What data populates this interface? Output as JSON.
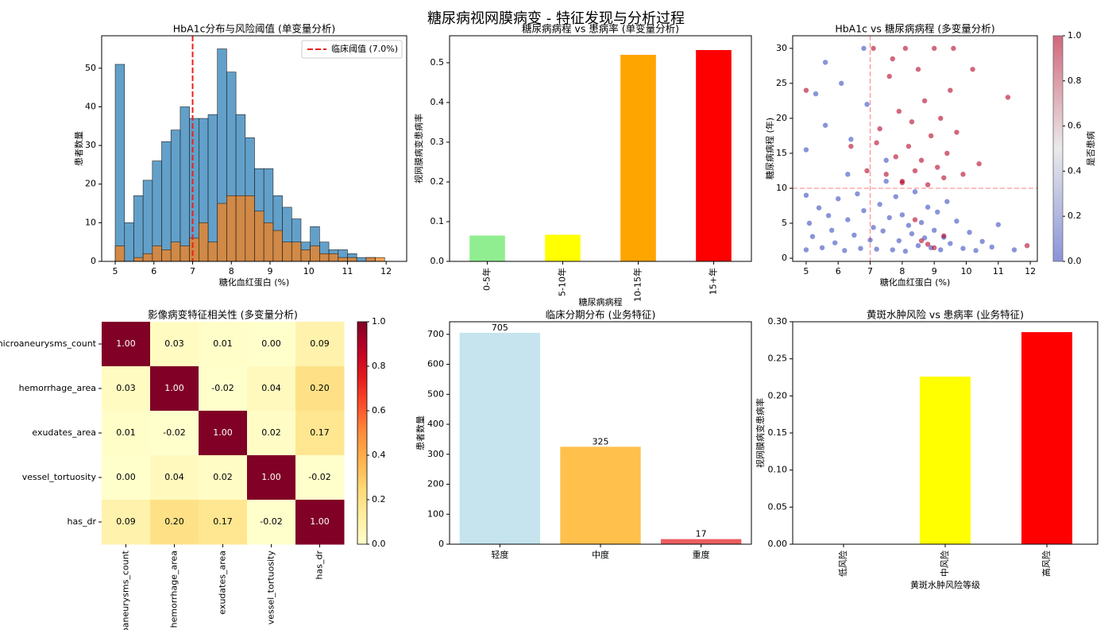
{
  "title": "糖尿病视网膜病变 - 特征发现与分析过程",
  "chart_data": [
    {
      "type": "histogram",
      "title": "HbA1c分布与风险阈值 (单变量分析)",
      "xlabel": "糖化血红蛋白 (%)",
      "ylabel": "患者数量",
      "bins": [
        5.0,
        5.24,
        5.48,
        5.72,
        5.96,
        6.2,
        6.44,
        6.68,
        6.92,
        7.16,
        7.4,
        7.64,
        7.88,
        8.12,
        8.36,
        8.6,
        8.84,
        9.08,
        9.32,
        9.56,
        9.8,
        10.04,
        10.28,
        10.52,
        10.76,
        11.0,
        11.24,
        11.48,
        11.72,
        11.96
      ],
      "series": [
        {
          "color": "#1f77b4",
          "values": [
            51,
            10,
            17,
            21,
            26,
            31,
            34,
            40,
            37,
            37,
            38,
            55,
            49,
            38,
            32,
            24,
            24,
            17,
            14,
            11,
            5,
            9,
            5,
            3,
            3,
            2,
            1,
            1,
            0
          ]
        },
        {
          "color": "#ff7f0e",
          "values": [
            4,
            0,
            1,
            2,
            4,
            3,
            5,
            4,
            6,
            10,
            5,
            15,
            17,
            17,
            17,
            13,
            10,
            8,
            5,
            5,
            3,
            4,
            2,
            2,
            1,
            1,
            0,
            1,
            1
          ]
        }
      ],
      "alpha": 0.7,
      "xlim": [
        4.65,
        12.53
      ],
      "xticks": [
        5,
        6,
        7,
        8,
        9,
        10,
        11,
        12
      ],
      "ylim": [
        0,
        58.4
      ],
      "yticks": [
        0,
        10,
        20,
        30,
        40,
        50
      ],
      "threshold": 7,
      "threshold_label": "临床阈值 (7.0%)",
      "threshold_color": "#e8211c",
      "legend": "upper right"
    },
    {
      "type": "bar",
      "title": "糖尿病病程 vs 患病率 (单变量分析)",
      "xlabel": "糖尿病病程",
      "ylabel": "视网膜病变患病率",
      "categories": [
        "0-5年",
        "5-10年",
        "10-15年",
        "15+年"
      ],
      "values": [
        0.065,
        0.067,
        0.52,
        0.532
      ],
      "colors": [
        "lightgreen",
        "yellow",
        "orange",
        "red"
      ],
      "rotate_xticks": true,
      "ylim": [
        0,
        0.568
      ],
      "yticks": [
        {
          "value": 0,
          "label": "0.0"
        },
        0.1,
        0.2,
        0.3,
        0.4,
        0.5
      ]
    },
    {
      "type": "scatter",
      "title": "HbA1c vs 糖尿病病程 (多变量分析)",
      "xlabel": "糖化血红蛋白 (%)",
      "ylabel": "糖尿病病程 (年)",
      "x": [
        5.0,
        5.0,
        5.1,
        5.2,
        5.3,
        5.4,
        5.5,
        5.6,
        5.7,
        5.8,
        5.9,
        6.0,
        6.1,
        6.2,
        6.3,
        6.4,
        6.5,
        6.6,
        6.7,
        6.8,
        6.9,
        7.0,
        7.1,
        7.2,
        7.3,
        7.4,
        7.5,
        7.6,
        7.7,
        7.8,
        7.9,
        8.0,
        8.1,
        8.2,
        8.3,
        8.4,
        8.5,
        8.6,
        8.7,
        8.8,
        8.9,
        9.0,
        9.1,
        9.2,
        9.3,
        9.4,
        9.5,
        9.7,
        9.9,
        10.1,
        10.3,
        10.5,
        10.8,
        11.0,
        11.5,
        5.0,
        5.6,
        6.3,
        6.8,
        7.5,
        7.1,
        7.3,
        7.5,
        7.6,
        7.8,
        7.9,
        8.0,
        8.1,
        8.2,
        8.3,
        8.4,
        8.5,
        8.6,
        8.7,
        8.8,
        8.9,
        9.0,
        9.1,
        9.2,
        9.3,
        9.4,
        9.5,
        9.7,
        9.9,
        10.2,
        10.4,
        11.3,
        7.2,
        7.7,
        8.0,
        8.6,
        9.0,
        9.3,
        8.4,
        6.4,
        6.9,
        5.0,
        8.8,
        9.6,
        11.9
      ],
      "y": [
        1.2,
        9.0,
        5.0,
        3.1,
        23.5,
        7.2,
        1.5,
        28.0,
        6.1,
        4.0,
        2.2,
        8.5,
        25.0,
        1.1,
        5.5,
        17.0,
        3.3,
        9.2,
        1.4,
        6.8,
        22.0,
        2.6,
        4.4,
        1.3,
        7.7,
        3.9,
        11.0,
        5.8,
        1.2,
        8.8,
        2.5,
        6.2,
        1.0,
        4.7,
        3.5,
        9.5,
        1.8,
        5.1,
        2.9,
        7.3,
        1.5,
        4.0,
        6.6,
        1.2,
        3.0,
        8.1,
        2.1,
        5.3,
        1.4,
        3.7,
        1.1,
        2.4,
        1.6,
        4.8,
        1.2,
        15.5,
        19.0,
        12.0,
        30.0,
        14.0,
        30.0,
        18.5,
        12.0,
        26.0,
        14.5,
        21.0,
        11.0,
        30.0,
        16.0,
        19.5,
        12.5,
        27.0,
        14.0,
        22.5,
        10.5,
        17.5,
        30.0,
        13.0,
        20.0,
        11.5,
        15.0,
        24.0,
        18.0,
        12.0,
        27.0,
        13.5,
        23.0,
        16.5,
        28.5,
        10.8,
        2.5,
        1.5,
        3.2,
        5.5,
        16.0,
        12.5,
        24.0,
        2.0,
        30.0,
        1.8
      ],
      "c": [
        0,
        0,
        0,
        0,
        0,
        0,
        0,
        0,
        0,
        0,
        0,
        0,
        0,
        0,
        0,
        0,
        0,
        0,
        0,
        0,
        0,
        0,
        0,
        0,
        0,
        0,
        0,
        0,
        0,
        0,
        0,
        0,
        0,
        0,
        0,
        0,
        0,
        0,
        0,
        0,
        0,
        0,
        0,
        0,
        0,
        0,
        0,
        0,
        0,
        0,
        0,
        0,
        0,
        0,
        0,
        0,
        0,
        0,
        0,
        0,
        1,
        1,
        1,
        1,
        1,
        1,
        1,
        1,
        1,
        1,
        1,
        1,
        1,
        1,
        1,
        1,
        1,
        1,
        1,
        1,
        1,
        1,
        1,
        1,
        1,
        1,
        1,
        1,
        1,
        1,
        1,
        1,
        1,
        1,
        1,
        1,
        1,
        1,
        1,
        1
      ],
      "cmap": "coolwarm",
      "alpha": 0.6,
      "clim": [
        0,
        1
      ],
      "colorbar_label": "是否患病",
      "cticks": [
        {
          "value": 0,
          "label": "0.0"
        },
        0.2,
        0.4,
        0.6,
        0.8,
        {
          "value": 1,
          "label": "1.0"
        }
      ],
      "vline": 7,
      "hline": 10,
      "ref_color": "red",
      "xlim": [
        4.58,
        12.22
      ],
      "xticks": [
        5,
        6,
        7,
        8,
        9,
        10,
        11,
        12
      ],
      "ylim": [
        -0.45,
        31.8
      ],
      "yticks": [
        0,
        5,
        10,
        15,
        20,
        25,
        30
      ]
    },
    {
      "type": "heatmap",
      "title": "影像病变特征相关性 (多变量分析)",
      "labels": [
        "microaneurysms_count",
        "hemorrhage_area",
        "exudates_area",
        "vessel_tortuosity",
        "has_dr"
      ],
      "values": [
        [
          1,
          0.03,
          0.01,
          0,
          0.09
        ],
        [
          0.03,
          1,
          -0.02,
          0.04,
          0.2
        ],
        [
          0.01,
          -0.02,
          1,
          0.02,
          0.17
        ],
        [
          0,
          0.04,
          0.02,
          1,
          -0.02
        ],
        [
          0.09,
          0.2,
          0.17,
          -0.02,
          1
        ]
      ],
      "value_labels": [
        [
          "1.00",
          "0.03",
          "0.01",
          "0.00",
          "0.09"
        ],
        [
          "0.03",
          "1.00",
          "-0.02",
          "0.04",
          "0.20"
        ],
        [
          "0.01",
          "-0.02",
          "1.00",
          "0.02",
          "0.17"
        ],
        [
          "0.00",
          "0.04",
          "0.02",
          "1.00",
          "-0.02"
        ],
        [
          "0.09",
          "0.20",
          "0.17",
          "-0.02",
          "1.00"
        ]
      ],
      "cmap": "YlOrRd",
      "clim": [
        0,
        1
      ],
      "cticks": [
        {
          "value": 0,
          "label": "0.0"
        },
        0.2,
        0.4,
        0.6,
        0.8,
        {
          "value": 1,
          "label": "1.0"
        }
      ]
    },
    {
      "type": "bar",
      "title": "临床分期分布 (业务特征)",
      "ylabel": "患者数量",
      "categories": [
        "轻度",
        "中度",
        "重度"
      ],
      "values": [
        705,
        325,
        17
      ],
      "colors": [
        "lightblue",
        "orange",
        "#e31a1c"
      ],
      "alpha": 0.7,
      "data_labels": true,
      "ylim": [
        0,
        742
      ],
      "yticks": [
        0,
        100,
        200,
        300,
        400,
        500,
        600,
        700
      ]
    },
    {
      "type": "bar",
      "title": "黄斑水肿风险 vs 患病率 (业务特征)",
      "xlabel": "黄斑水肿风险等级",
      "ylabel": "视网膜病变患病率",
      "categories": [
        "低风险",
        "中风险",
        "高风险"
      ],
      "values": [
        0,
        0.226,
        0.286
      ],
      "colors": [
        "green",
        "yellow",
        "red"
      ],
      "rotate_xticks": true,
      "ylim": [
        0,
        0.3
      ],
      "yticks": [
        {
          "value": 0,
          "label": "0.00"
        },
        0.05,
        {
          "value": 0.1,
          "label": "0.10"
        },
        0.15,
        {
          "value": 0.2,
          "label": "0.20"
        },
        0.25,
        {
          "value": 0.3,
          "label": "0.30"
        }
      ]
    }
  ]
}
